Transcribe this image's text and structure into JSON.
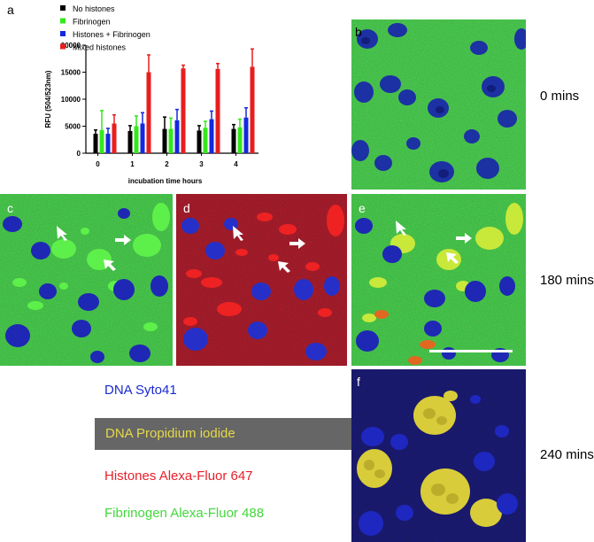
{
  "panels": {
    "a": "a",
    "b": "b",
    "c": "c",
    "d": "d",
    "e": "e",
    "f": "f"
  },
  "time_labels": {
    "t0": "0 mins",
    "t180": "180 mins",
    "t240": "240 mins"
  },
  "stain_legend": {
    "dna_syto": "DNA Syto41",
    "dna_pi": "DNA Propidium iodide",
    "histones": "Histones Alexa-Fluor 647",
    "fibrinogen": "Fibrinogen Alexa-Fluor 488"
  },
  "colors": {
    "blue": "#0a14c8",
    "yellow": "#e5d94a",
    "red": "#e8202a",
    "green": "#42d83a",
    "pi_box": "#666666"
  },
  "chart_data": {
    "type": "bar",
    "xlabel": "incubation time hours",
    "ylabel": "RFU (504/523nm)",
    "ylim": [
      0,
      20000
    ],
    "yticks": [
      "0",
      "5000",
      "10000",
      "15000",
      "20000"
    ],
    "categories": [
      "0",
      "1",
      "2",
      "3",
      "4"
    ],
    "legend_position": "top-left",
    "series": [
      {
        "name": "No histones",
        "color": "#000000",
        "values": [
          3600,
          4100,
          4500,
          4200,
          4500
        ],
        "errors": [
          700,
          1000,
          2200,
          900,
          800
        ]
      },
      {
        "name": "Fibrinogen",
        "color": "#34e81a",
        "values": [
          4300,
          5000,
          4500,
          4700,
          4800
        ],
        "errors": [
          3600,
          1900,
          2000,
          1200,
          1500
        ]
      },
      {
        "name": "Histones + Fibrinogen",
        "color": "#1428e0",
        "values": [
          3600,
          5500,
          6100,
          6300,
          6600
        ],
        "errors": [
          1000,
          2000,
          2000,
          1500,
          1800
        ]
      },
      {
        "name": "Mixed histones",
        "color": "#e81e1e",
        "values": [
          5500,
          15000,
          15700,
          15600,
          16000
        ],
        "errors": [
          1600,
          3200,
          600,
          1000,
          3300
        ]
      }
    ]
  }
}
